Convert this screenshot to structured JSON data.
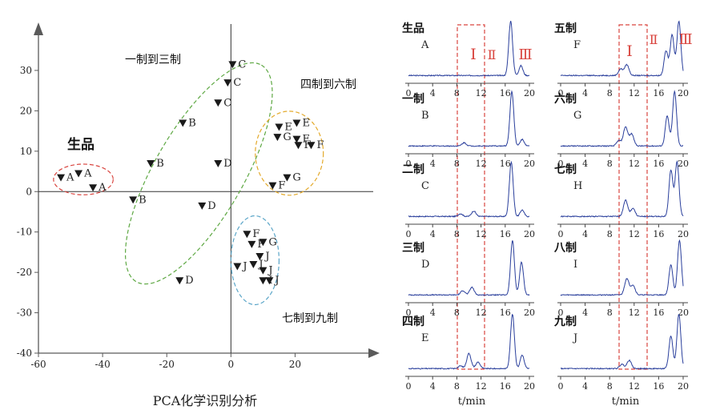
{
  "chart_data": [
    {
      "type": "scatter",
      "title": "",
      "caption": "PCA化学识别分析",
      "xlabel": "",
      "ylabel": "",
      "xlim": [
        -60,
        30
      ],
      "ylim": [
        -40,
        40
      ],
      "xticks": [
        "-60",
        "-40",
        "-20",
        "0",
        "20"
      ],
      "yticks": [
        "-40",
        "-30",
        "-20",
        "-10",
        "0",
        "10",
        "20",
        "30"
      ],
      "points": [
        {
          "label": "A",
          "x": -53,
          "y": 3.5
        },
        {
          "label": "A",
          "x": -47.5,
          "y": 4.5
        },
        {
          "label": "A",
          "x": -43,
          "y": 1
        },
        {
          "label": "B",
          "x": -30.5,
          "y": -2
        },
        {
          "label": "B",
          "x": -25,
          "y": 7
        },
        {
          "label": "B",
          "x": -15,
          "y": 17
        },
        {
          "label": "C",
          "x": 0.5,
          "y": 31.5
        },
        {
          "label": "C",
          "x": -1,
          "y": 27
        },
        {
          "label": "C",
          "x": -4,
          "y": 22
        },
        {
          "label": "D",
          "x": -4,
          "y": 7
        },
        {
          "label": "D",
          "x": -9,
          "y": -3.5
        },
        {
          "label": "D",
          "x": -16,
          "y": -22
        },
        {
          "label": "E",
          "x": 15,
          "y": 16
        },
        {
          "label": "E",
          "x": 20.5,
          "y": 17
        },
        {
          "label": "G",
          "x": 14.5,
          "y": 13.5
        },
        {
          "label": "F",
          "x": 20.5,
          "y": 13
        },
        {
          "label": "F",
          "x": 21,
          "y": 11.5
        },
        {
          "label": "F",
          "x": 25,
          "y": 11.5
        },
        {
          "label": "G",
          "x": 17.5,
          "y": 3.5
        },
        {
          "label": "F",
          "x": 13,
          "y": 1.5
        },
        {
          "label": "F",
          "x": 5,
          "y": -10.5
        },
        {
          "label": "F",
          "x": 6.5,
          "y": -13
        },
        {
          "label": "G",
          "x": 10,
          "y": -12.5
        },
        {
          "label": "J",
          "x": 9,
          "y": -16
        },
        {
          "label": "J",
          "x": 7,
          "y": -18
        },
        {
          "label": "J",
          "x": 2,
          "y": -18.5
        },
        {
          "label": "J",
          "x": 10,
          "y": -19.5
        },
        {
          "label": "I",
          "x": 10,
          "y": -22
        },
        {
          "label": "J",
          "x": 12,
          "y": -22
        }
      ],
      "groups": [
        {
          "label": "生品",
          "color": "#d9453f"
        },
        {
          "label": "一制到三制",
          "color": "#5ea843"
        },
        {
          "label": "四制到六制",
          "color": "#e3a92a"
        },
        {
          "label": "七制到九制",
          "color": "#5aa5c8"
        }
      ]
    },
    {
      "type": "line",
      "xlabel": "t/min",
      "xlim": [
        0,
        20
      ],
      "xticks": [
        "0",
        "4",
        "8",
        "12",
        "16",
        "20"
      ],
      "region_labels": [
        "Ⅰ",
        "Ⅱ",
        "Ⅲ"
      ],
      "line_color": "#2a3f9c",
      "highlight_color": "#d9453f",
      "panels": [
        {
          "name": "生品",
          "code": "A",
          "peaks": [
            {
              "x": 16.9,
              "h": 1.0
            },
            {
              "x": 18.6,
              "h": 0.18
            }
          ]
        },
        {
          "name": "一制",
          "code": "B",
          "peaks": [
            {
              "x": 17.1,
              "h": 1.0
            },
            {
              "x": 18.8,
              "h": 0.12
            },
            {
              "x": 9.2,
              "h": 0.06
            }
          ]
        },
        {
          "name": "二制",
          "code": "C",
          "peaks": [
            {
              "x": 17.0,
              "h": 1.0
            },
            {
              "x": 10.8,
              "h": 0.1
            },
            {
              "x": 8.6,
              "h": 0.05
            },
            {
              "x": 18.8,
              "h": 0.12
            }
          ]
        },
        {
          "name": "三制",
          "code": "D",
          "peaks": [
            {
              "x": 17.2,
              "h": 1.0
            },
            {
              "x": 18.7,
              "h": 0.6
            },
            {
              "x": 10.5,
              "h": 0.14
            },
            {
              "x": 9.0,
              "h": 0.08
            }
          ]
        },
        {
          "name": "四制",
          "code": "E",
          "peaks": [
            {
              "x": 17.2,
              "h": 1.0
            },
            {
              "x": 18.8,
              "h": 0.25
            },
            {
              "x": 10.0,
              "h": 0.28
            },
            {
              "x": 11.5,
              "h": 0.12
            },
            {
              "x": 8.6,
              "h": 0.05
            }
          ]
        },
        {
          "name": "五制",
          "code": "F",
          "peaks": [
            {
              "x": 19.3,
              "h": 1.0
            },
            {
              "x": 18.2,
              "h": 0.75
            },
            {
              "x": 17.2,
              "h": 0.45
            },
            {
              "x": 10.8,
              "h": 0.2
            },
            {
              "x": 9.8,
              "h": 0.12
            }
          ]
        },
        {
          "name": "六制",
          "code": "G",
          "peaks": [
            {
              "x": 18.6,
              "h": 1.0
            },
            {
              "x": 17.4,
              "h": 0.55
            },
            {
              "x": 10.6,
              "h": 0.35
            },
            {
              "x": 11.6,
              "h": 0.22
            },
            {
              "x": 9.5,
              "h": 0.1
            }
          ]
        },
        {
          "name": "七制",
          "code": "H",
          "peaks": [
            {
              "x": 19.0,
              "h": 1.0
            },
            {
              "x": 18.0,
              "h": 0.85
            },
            {
              "x": 10.6,
              "h": 0.3
            },
            {
              "x": 11.8,
              "h": 0.15
            }
          ]
        },
        {
          "name": "八制",
          "code": "I",
          "peaks": [
            {
              "x": 19.4,
              "h": 1.0
            },
            {
              "x": 18.0,
              "h": 0.55
            },
            {
              "x": 10.8,
              "h": 0.3
            },
            {
              "x": 11.8,
              "h": 0.18
            }
          ]
        },
        {
          "name": "九制",
          "code": "J",
          "peaks": [
            {
              "x": 19.3,
              "h": 1.0
            },
            {
              "x": 18.0,
              "h": 0.6
            },
            {
              "x": 11.2,
              "h": 0.15
            },
            {
              "x": 10.0,
              "h": 0.08
            }
          ]
        }
      ]
    }
  ]
}
